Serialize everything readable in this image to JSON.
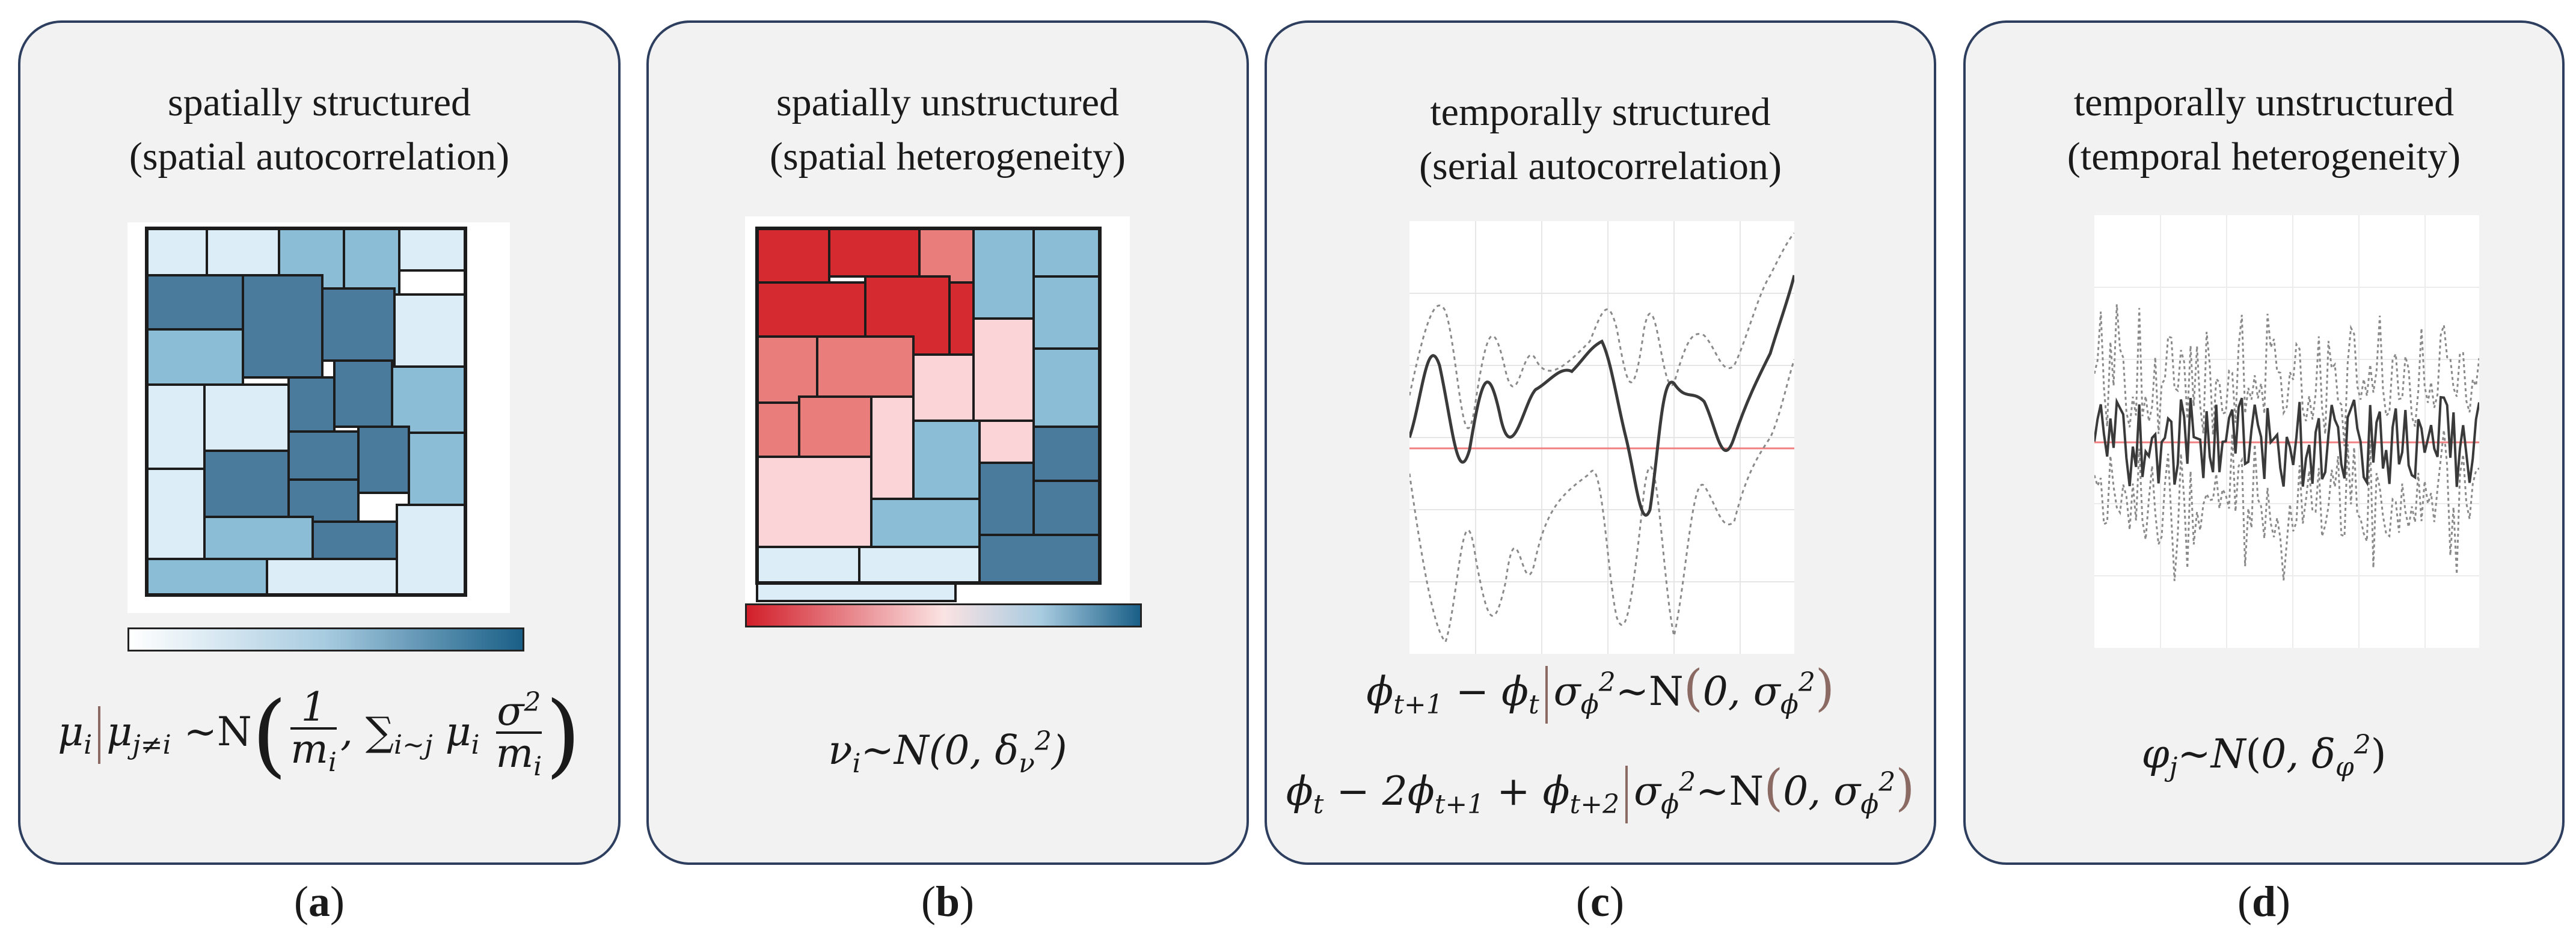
{
  "panels": [
    {
      "title_line1": "spatially structured",
      "title_line2": "(spatial autocorrelation)",
      "caption_letter": "a",
      "colorbar": [
        "#ffffff",
        "#a7cbe0",
        "#1a5f87"
      ]
    },
    {
      "title_line1": "spatially unstructured",
      "title_line2": "(spatial heterogeneity)",
      "caption_letter": "b",
      "colorbar": [
        "#d21f2a",
        "#fbe3e3",
        "#1a5f87"
      ]
    },
    {
      "title_line1": "temporally structured",
      "title_line2": "(serial autocorrelation)",
      "caption_letter": "c"
    },
    {
      "title_line1": "temporally unstructured",
      "title_line2": "(temporal heterogeneity)",
      "caption_letter": "d"
    }
  ],
  "formulas": {
    "a": {
      "mu": "μ",
      "mu_sub": "i",
      "cond": "μ",
      "cond_sub": "j≠i",
      "dist": "~N",
      "frac1_num": "1",
      "frac1_den": "m",
      "frac1_den_sub": "i",
      "sum": "∑",
      "sum_sub": "i~j",
      "mu2": "μ",
      "mu2_sub": "i",
      "frac2_num": "σ",
      "frac2_num_sup": "2",
      "frac2_den": "m",
      "frac2_den_sub": "i"
    },
    "b": {
      "lhs": "ν",
      "lhs_sub": "i",
      "rhs": "~N(0, δ",
      "rhs_sub": "ν",
      "rhs_sup": "2",
      "close": ")"
    },
    "c1": {
      "lhs": "ϕ",
      "t1_sub": "t+1",
      "minus": " − ϕ",
      "t_sub": "t",
      "cond": "σ",
      "cond_sub": "ϕ",
      "cond_sup": "2",
      "dist": "~N",
      "zero": "0, σ",
      "var_sub": "ϕ",
      "var_sup": "2"
    },
    "c2": {
      "lhs": "ϕ",
      "t_sub": "t",
      "mid": " − 2ϕ",
      "t1_sub": "t+1",
      "plus": " + ϕ",
      "t2_sub": "t+2",
      "cond": "σ",
      "cond_sub": "ϕ",
      "cond_sup": "2",
      "dist": "~N",
      "zero": "0, σ",
      "var_sub": "ϕ",
      "var_sup": "2"
    },
    "d": {
      "lhs": "φ",
      "lhs_sub": "j",
      "rhs": "~N",
      "zero": "0, δ",
      "rhs_sub": "φ",
      "rhs_sup": "2"
    }
  },
  "colors": {
    "border": "#2d3e5e",
    "panel_bg": "#f2f2f3",
    "blue_light": "#dcedf7",
    "blue_mid": "#8cbdd6",
    "blue_dark": "#4a7b9c",
    "red_dark": "#d42a30",
    "red_mid": "#e87d7b",
    "red_light": "#fad4d6",
    "ts_line": "#3a3a3a",
    "ts_ci": "#8a8a8a",
    "ts_zero": "#f08080"
  }
}
